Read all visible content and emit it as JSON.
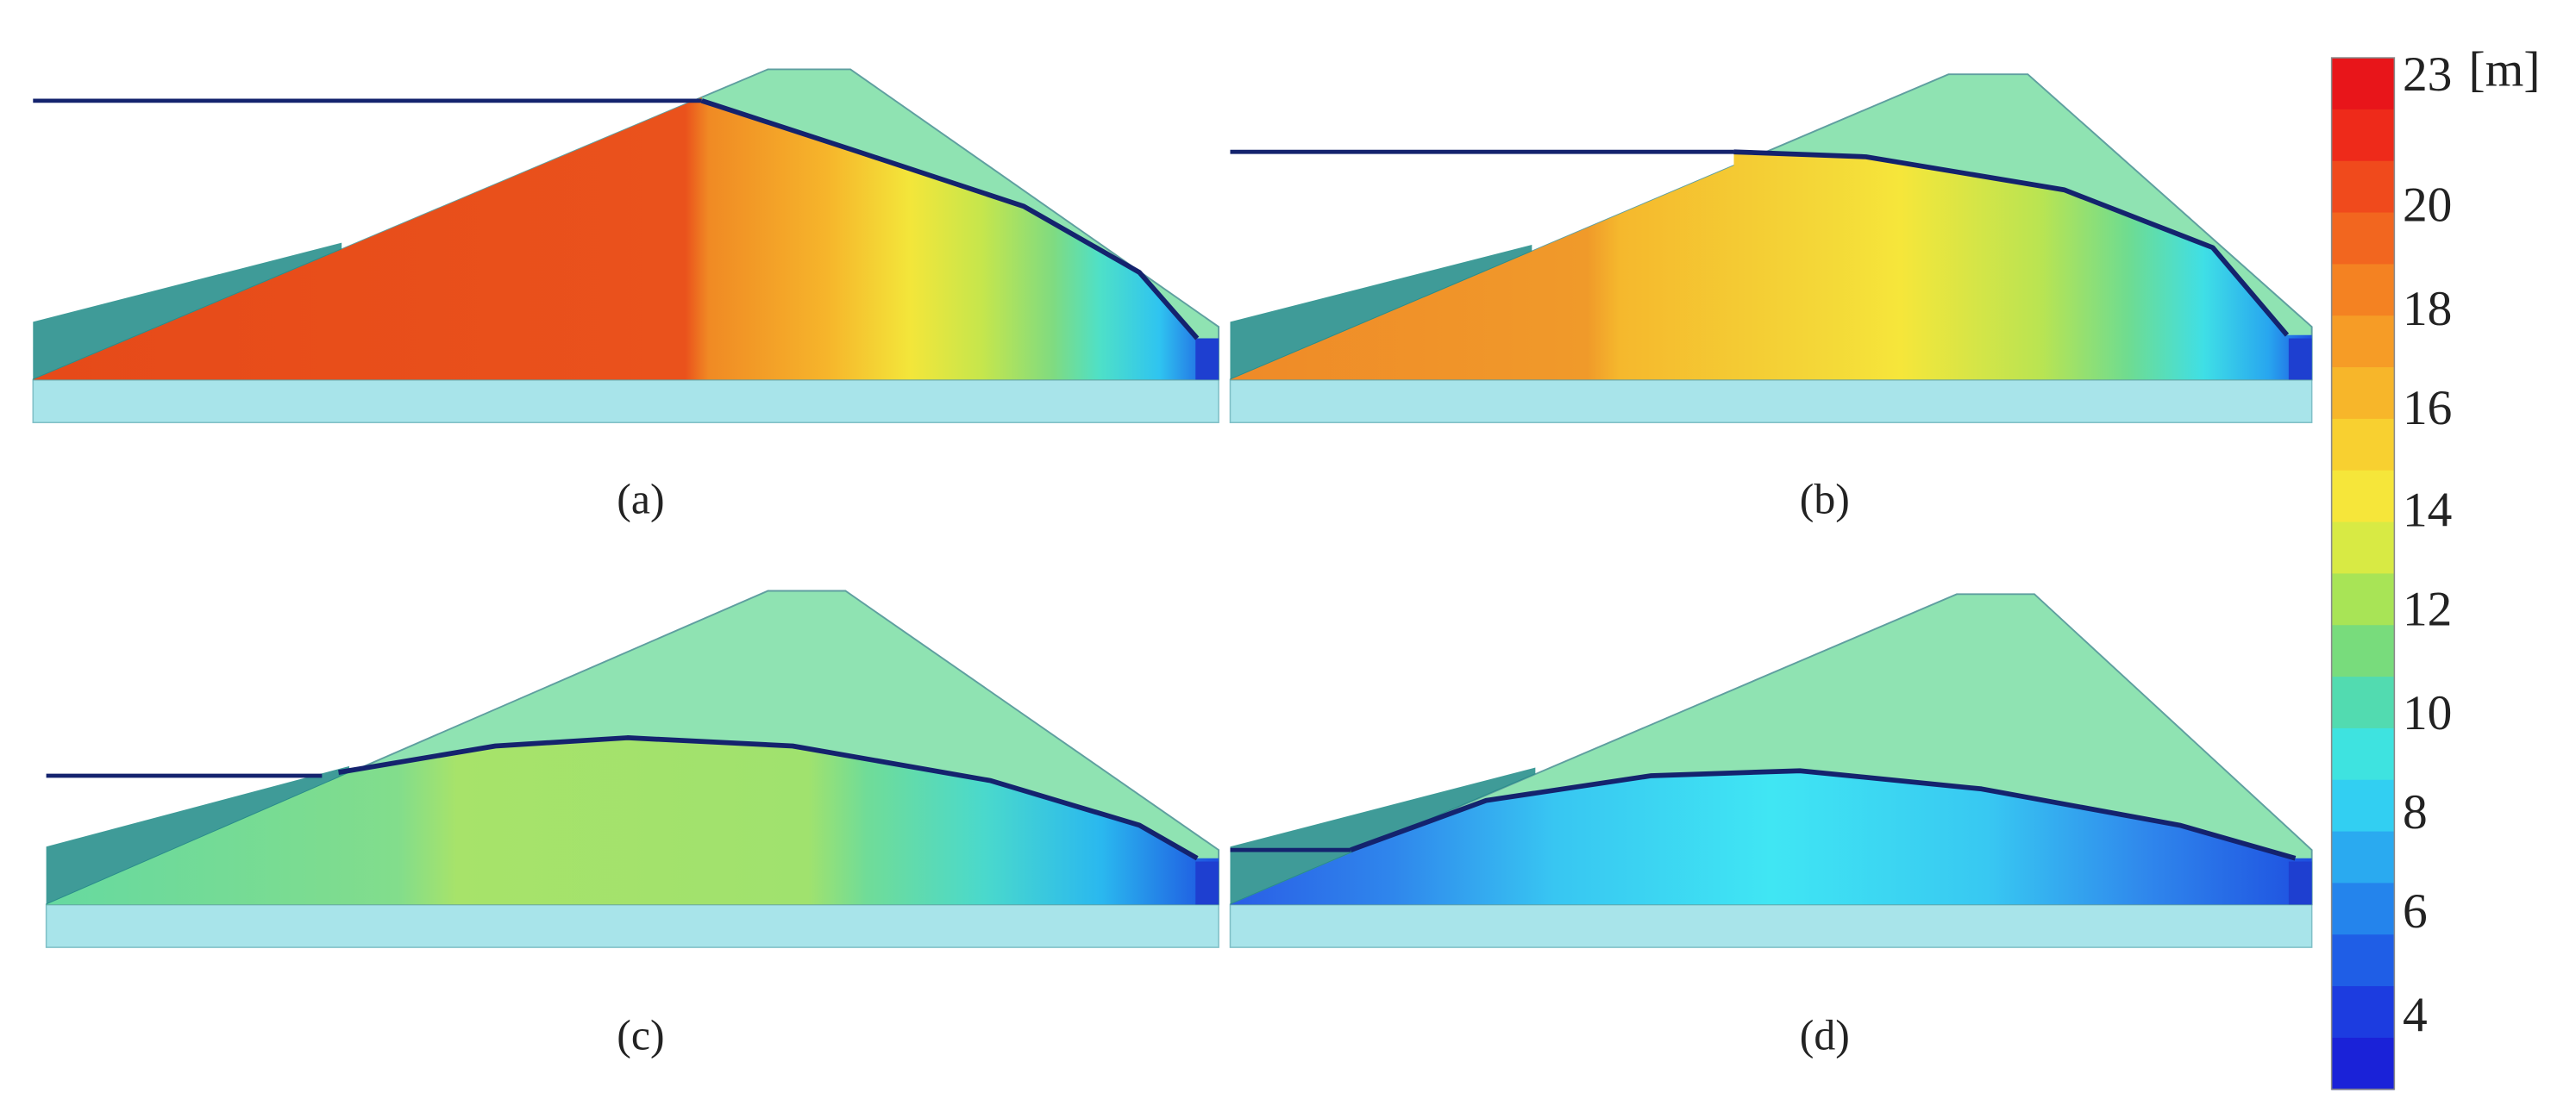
{
  "panels": [
    {
      "label": "(a)"
    },
    {
      "label": "(b)"
    },
    {
      "label": "(c)"
    },
    {
      "label": "(d)"
    }
  ],
  "colorbar": {
    "unit": "[m]",
    "labels": [
      "23",
      "20",
      "18",
      "16",
      "14",
      "12",
      "10",
      "8",
      "6",
      "4"
    ]
  }
}
